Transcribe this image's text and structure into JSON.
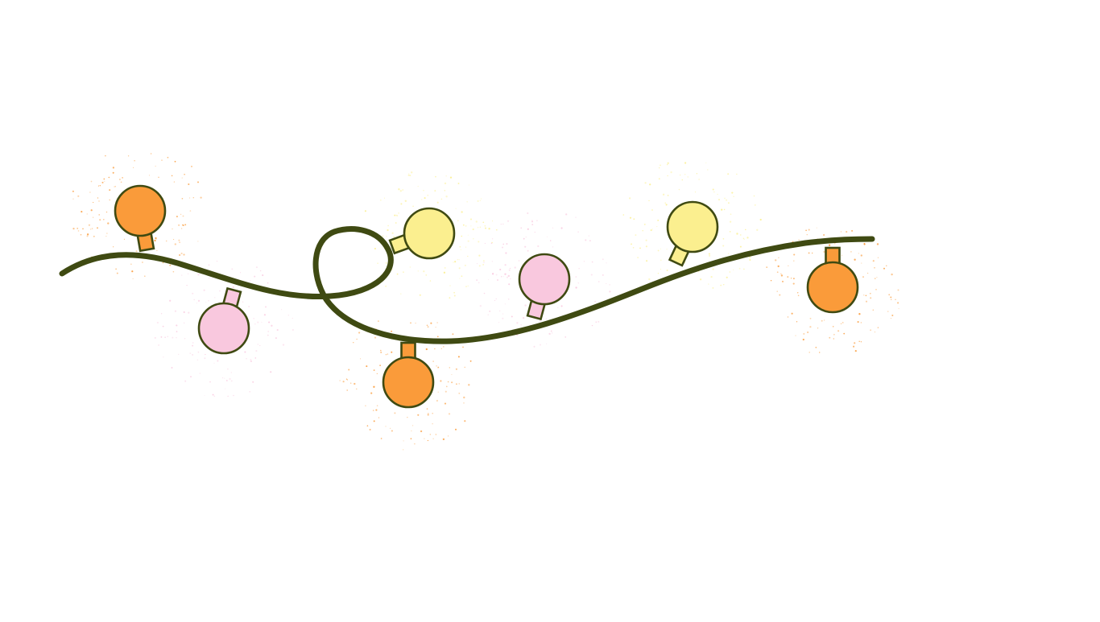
{
  "illustration": {
    "subject": "string-lights",
    "background_color": "#ffffff",
    "cord_color": "#3f4a12",
    "outline_color": "#3f4a12",
    "bulbs": [
      {
        "color_name": "orange",
        "color": "#fa9b3a",
        "hang": "up"
      },
      {
        "color_name": "pink",
        "color": "#f9c8de",
        "hang": "down"
      },
      {
        "color_name": "yellow",
        "color": "#fbef8f",
        "hang": "up"
      },
      {
        "color_name": "orange",
        "color": "#fa9b3a",
        "hang": "down"
      },
      {
        "color_name": "pink",
        "color": "#f9c8de",
        "hang": "up"
      },
      {
        "color_name": "yellow",
        "color": "#fbef8f",
        "hang": "up"
      },
      {
        "color_name": "orange",
        "color": "#fa9b3a",
        "hang": "down"
      }
    ]
  }
}
